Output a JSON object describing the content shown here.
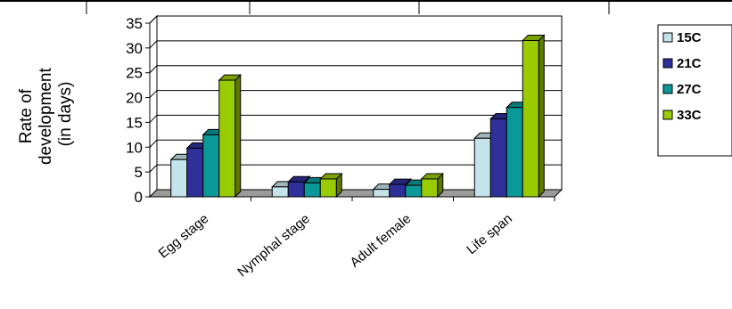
{
  "chart_data": {
    "type": "bar",
    "ylabel_lines": [
      "Rate of",
      "development",
      "(in days)"
    ],
    "categories": [
      "Egg stage",
      "Nymphal stage",
      "Adult female",
      "Life span"
    ],
    "series": [
      {
        "name": "15C",
        "values": [
          7.5,
          2.0,
          1.5,
          11.8
        ],
        "color": "#c5e3ea"
      },
      {
        "name": "21C",
        "values": [
          9.8,
          3.0,
          2.5,
          15.7
        ],
        "color": "#2f2f99"
      },
      {
        "name": "27C",
        "values": [
          12.5,
          2.8,
          2.3,
          18.0
        ],
        "color": "#0b9898"
      },
      {
        "name": "33C",
        "values": [
          23.5,
          3.6,
          3.6,
          31.5
        ],
        "color": "#99cc00"
      }
    ],
    "yticks": [
      0,
      5,
      10,
      15,
      20,
      25,
      30,
      35
    ],
    "ylim": [
      0,
      35
    ],
    "grid": true,
    "legend_position": "right"
  }
}
